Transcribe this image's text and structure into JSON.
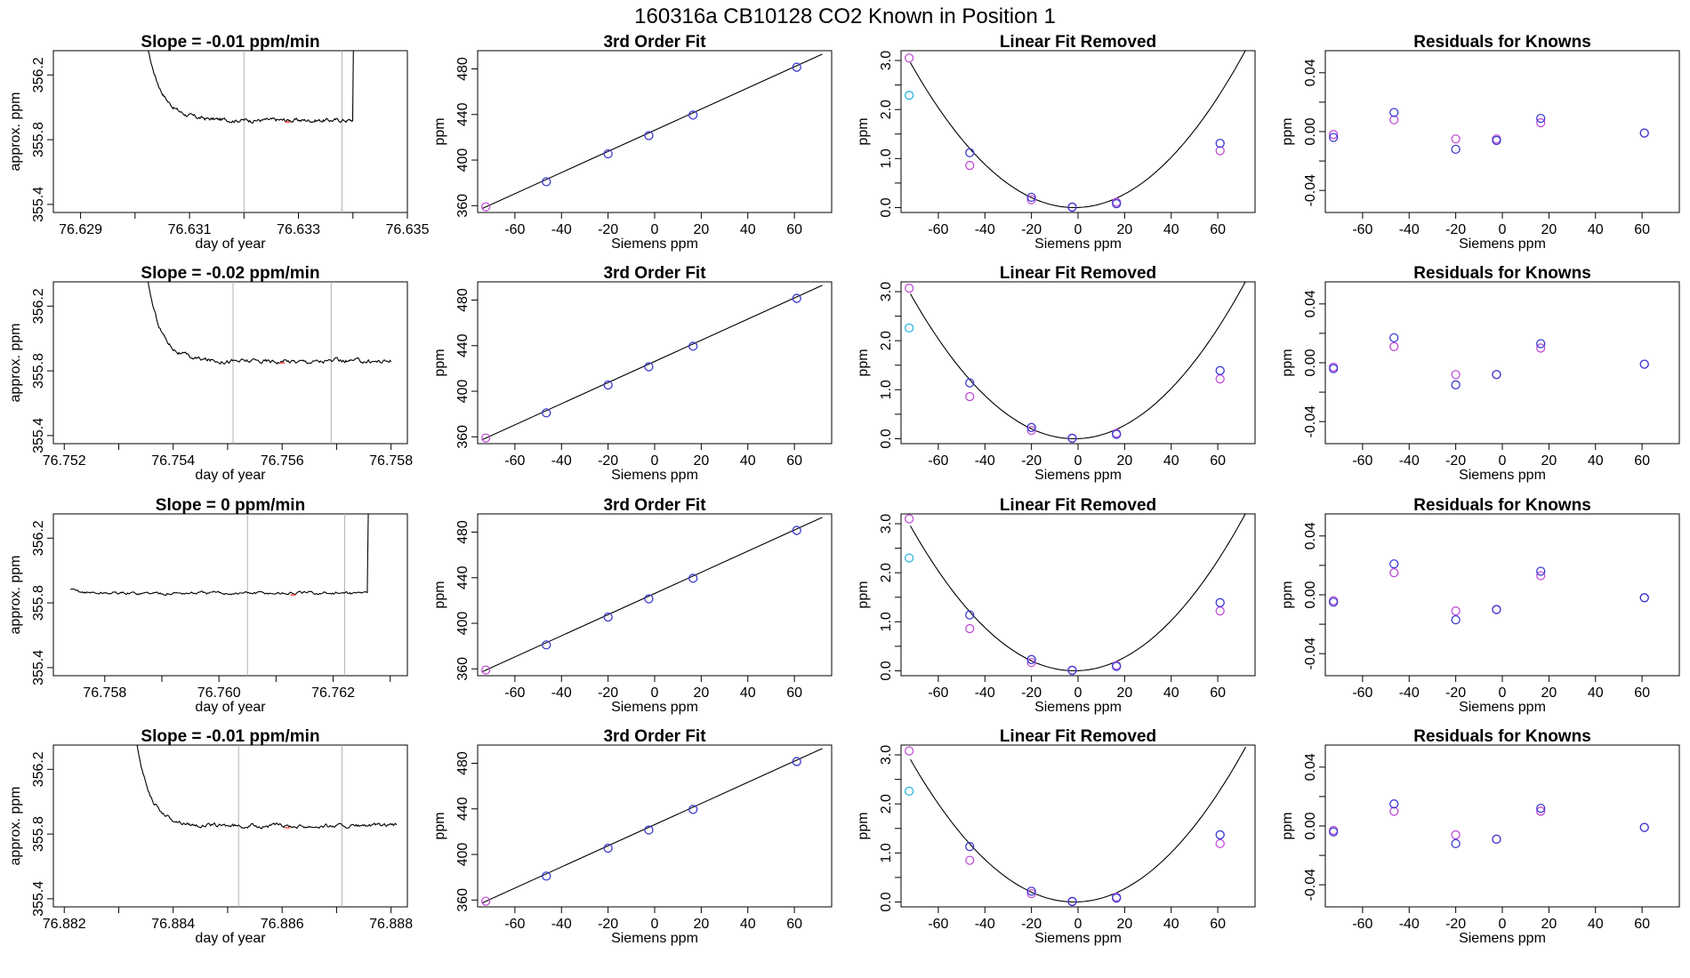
{
  "header": {
    "title": "160316a     CB10128    CO2 Known in Position  1"
  },
  "colors": {
    "series_a": "#3a3ad0",
    "series_b": "#c24fd8",
    "outlier": "#29b6e0",
    "marker": "#ff4d4d",
    "guide": "#b0b0b0"
  },
  "chart_data": [
    {
      "type": "line",
      "row": 1,
      "col": 1,
      "title": "Slope =  -0.01  ppm/min",
      "xlabel": "day of year",
      "ylabel": "approx. ppm",
      "xlim": [
        76.6285,
        76.635
      ],
      "ylim": [
        355.35,
        356.35
      ],
      "xticks": [
        76.629,
        76.631,
        76.633,
        76.635
      ],
      "xtick_labels": [
        "76.629",
        "76.631",
        "76.633",
        "76.635"
      ],
      "xticks_minor": [
        76.63,
        76.632,
        76.634
      ],
      "yticks": [
        355.4,
        355.8,
        356.2
      ],
      "ytick_labels": [
        "355.4",
        "355.8",
        "356.2"
      ],
      "vlines": [
        76.632,
        76.6338
      ],
      "marker_x": 76.6328,
      "trace": {
        "start": 76.6302,
        "end": 76.6341,
        "y0": 356.42,
        "plateau": 355.92,
        "tau": 0.00028,
        "noise": 0.01,
        "rise_at": 76.634,
        "rise_to": 356.42
      }
    },
    {
      "type": "scatter",
      "row": 1,
      "col": 2,
      "title": "3rd Order Fit",
      "xlabel": "Siemens ppm",
      "ylabel": "ppm",
      "xlim": [
        -76,
        76
      ],
      "ylim": [
        354,
        496
      ],
      "xticks": [
        -60,
        -40,
        -20,
        0,
        20,
        40,
        60
      ],
      "xtick_labels": [
        "-60",
        "-40",
        "-20",
        "0",
        "20",
        "40",
        "60"
      ],
      "yticks": [
        360,
        400,
        440,
        480
      ],
      "ytick_labels": [
        "360",
        "400",
        "440",
        "480"
      ],
      "line": {
        "x": [
          -74,
          72
        ],
        "y": [
          357.5,
          493
        ]
      },
      "points": {
        "x": [
          -72.5,
          -46.5,
          -20,
          -2.5,
          16.5,
          61
        ],
        "y": [
          359,
          381,
          405.5,
          421.5,
          439.5,
          481.5
        ]
      }
    },
    {
      "type": "scatter",
      "row": 1,
      "col": 3,
      "title": "Linear Fit Removed",
      "xlabel": "Siemens ppm",
      "ylabel": "ppm",
      "xlim": [
        -76,
        76
      ],
      "ylim": [
        -0.1,
        3.2
      ],
      "xticks": [
        -60,
        -40,
        -20,
        0,
        20,
        40,
        60
      ],
      "xtick_labels": [
        "-60",
        "-40",
        "-20",
        "0",
        "20",
        "40",
        "60"
      ],
      "yticks": [
        0,
        1,
        2,
        3
      ],
      "ytick_labels": [
        "0.0",
        "1.0",
        "2.0",
        "3.0"
      ],
      "yticks_minor": [
        0.5,
        1.5,
        2.5
      ],
      "curve": {
        "vertex": -1.5,
        "k": 0.000595,
        "from": -72,
        "to": 72
      },
      "points_a": {
        "x": [
          -46.5,
          -20,
          -2.5,
          16.5,
          61
        ],
        "y": [
          1.12,
          0.21,
          0.01,
          0.08,
          1.31
        ]
      },
      "points_b": {
        "x": [
          -72.5,
          -46.5,
          -20,
          -2.5,
          16.5,
          61
        ],
        "y": [
          3.05,
          0.86,
          0.16,
          0.01,
          0.11,
          1.16
        ]
      },
      "outlier": {
        "x": [
          -72.5
        ],
        "y": [
          2.29
        ]
      }
    },
    {
      "type": "scatter",
      "row": 1,
      "col": 4,
      "title": "Residuals for Knowns",
      "xlabel": "Siemens ppm",
      "ylabel": "ppm",
      "xlim": [
        -76,
        76
      ],
      "ylim": [
        -0.055,
        0.055
      ],
      "xticks": [
        -60,
        -40,
        -20,
        0,
        20,
        40,
        60
      ],
      "xtick_labels": [
        "-60",
        "-40",
        "-20",
        "0",
        "20",
        "40",
        "60"
      ],
      "yticks": [
        -0.04,
        0,
        0.04
      ],
      "ytick_labels": [
        "-0.04",
        "0.00",
        "0.04"
      ],
      "yticks_minor": [
        -0.02,
        0.02
      ],
      "points_a": {
        "x": [
          -72.5,
          -46.5,
          -20,
          -2.5,
          16.5,
          61
        ],
        "y": [
          -0.004,
          0.013,
          -0.012,
          -0.006,
          0.009,
          -0.001
        ]
      },
      "points_b": {
        "x": [
          -72.5,
          -46.5,
          -20,
          -2.5,
          16.5,
          61
        ],
        "y": [
          -0.002,
          0.008,
          -0.005,
          -0.005,
          0.006,
          -0.001
        ]
      }
    },
    {
      "type": "line",
      "row": 2,
      "col": 1,
      "title": "Slope =  -0.02  ppm/min",
      "xlabel": "day of year",
      "ylabel": "approx. ppm",
      "xlim": [
        76.7518,
        76.7583
      ],
      "ylim": [
        355.35,
        356.35
      ],
      "xticks": [
        76.752,
        76.754,
        76.756,
        76.758
      ],
      "xtick_labels": [
        "76.752",
        "76.754",
        "76.756",
        "76.758"
      ],
      "xticks_minor": [
        76.753,
        76.755,
        76.757
      ],
      "yticks": [
        355.4,
        355.8,
        356.2
      ],
      "ytick_labels": [
        "355.4",
        "355.8",
        "356.2"
      ],
      "vlines": [
        76.7551,
        76.7569
      ],
      "marker_x": 76.756,
      "trace": {
        "start": 76.7535,
        "end": 76.758,
        "y0": 356.42,
        "plateau": 355.86,
        "tau": 0.00026,
        "noise": 0.011
      }
    },
    {
      "type": "scatter",
      "row": 2,
      "col": 2,
      "title": "3rd Order Fit",
      "xlabel": "Siemens ppm",
      "ylabel": "ppm",
      "xlim": [
        -76,
        76
      ],
      "ylim": [
        354,
        496
      ],
      "xticks": [
        -60,
        -40,
        -20,
        0,
        20,
        40,
        60
      ],
      "xtick_labels": [
        "-60",
        "-40",
        "-20",
        "0",
        "20",
        "40",
        "60"
      ],
      "yticks": [
        360,
        400,
        440,
        480
      ],
      "ytick_labels": [
        "360",
        "400",
        "440",
        "480"
      ],
      "line": {
        "x": [
          -74,
          72
        ],
        "y": [
          357.5,
          493
        ]
      },
      "points": {
        "x": [
          -72.5,
          -46.5,
          -20,
          -2.5,
          16.5,
          61
        ],
        "y": [
          359,
          381,
          405.5,
          421.5,
          439.5,
          481.5
        ]
      }
    },
    {
      "type": "scatter",
      "row": 2,
      "col": 3,
      "title": "Linear Fit Removed",
      "xlabel": "Siemens ppm",
      "ylabel": "ppm",
      "xlim": [
        -76,
        76
      ],
      "ylim": [
        -0.1,
        3.2
      ],
      "xticks": [
        -60,
        -40,
        -20,
        0,
        20,
        40,
        60
      ],
      "xtick_labels": [
        "-60",
        "-40",
        "-20",
        "0",
        "20",
        "40",
        "60"
      ],
      "yticks": [
        0,
        1,
        2,
        3
      ],
      "ytick_labels": [
        "0.0",
        "1.0",
        "2.0",
        "3.0"
      ],
      "yticks_minor": [
        0.5,
        1.5,
        2.5
      ],
      "curve": {
        "vertex": -1.5,
        "k": 0.000595,
        "from": -72,
        "to": 72
      },
      "points_a": {
        "x": [
          -46.5,
          -20,
          -2.5,
          16.5,
          61
        ],
        "y": [
          1.14,
          0.23,
          0.01,
          0.09,
          1.39
        ]
      },
      "points_b": {
        "x": [
          -72.5,
          -46.5,
          -20,
          -2.5,
          16.5,
          61
        ],
        "y": [
          3.07,
          0.86,
          0.17,
          0.01,
          0.11,
          1.22
        ]
      },
      "outlier": {
        "x": [
          -72.5
        ],
        "y": [
          2.26
        ]
      }
    },
    {
      "type": "scatter",
      "row": 2,
      "col": 4,
      "title": "Residuals for Knowns",
      "xlabel": "Siemens ppm",
      "ylabel": "ppm",
      "xlim": [
        -76,
        76
      ],
      "ylim": [
        -0.055,
        0.055
      ],
      "xticks": [
        -60,
        -40,
        -20,
        0,
        20,
        40,
        60
      ],
      "xtick_labels": [
        "-60",
        "-40",
        "-20",
        "0",
        "20",
        "40",
        "60"
      ],
      "yticks": [
        -0.04,
        0,
        0.04
      ],
      "ytick_labels": [
        "-0.04",
        "0.00",
        "0.04"
      ],
      "yticks_minor": [
        -0.02,
        0.02
      ],
      "points_a": {
        "x": [
          -72.5,
          -46.5,
          -20,
          -2.5,
          16.5,
          61
        ],
        "y": [
          -0.004,
          0.017,
          -0.015,
          -0.008,
          0.013,
          -0.001
        ]
      },
      "points_b": {
        "x": [
          -72.5,
          -46.5,
          -20,
          -2.5,
          16.5,
          61
        ],
        "y": [
          -0.003,
          0.011,
          -0.008,
          -0.008,
          0.01,
          -0.001
        ]
      }
    },
    {
      "type": "line",
      "row": 3,
      "col": 1,
      "title": "Slope =  0  ppm/min",
      "xlabel": "day of year",
      "ylabel": "approx. ppm",
      "xlim": [
        76.7571,
        76.7633
      ],
      "ylim": [
        355.35,
        356.35
      ],
      "xticks": [
        76.758,
        76.76,
        76.762
      ],
      "xtick_labels": [
        "76.758",
        "76.760",
        "76.762"
      ],
      "xticks_minor": [
        76.759,
        76.761,
        76.763
      ],
      "yticks": [
        355.4,
        355.8,
        356.2
      ],
      "ytick_labels": [
        "355.4",
        "355.8",
        "356.2"
      ],
      "vlines": [
        76.7605,
        76.7622
      ],
      "marker_x": 76.7613,
      "trace": {
        "start": 76.7574,
        "end": 76.7627,
        "y0": 355.88,
        "plateau": 355.86,
        "tau": 0.0002,
        "noise": 0.008,
        "rise_at": 76.7626,
        "rise_to": 356.42
      }
    },
    {
      "type": "scatter",
      "row": 3,
      "col": 2,
      "title": "3rd Order Fit",
      "xlabel": "Siemens ppm",
      "ylabel": "ppm",
      "xlim": [
        -76,
        76
      ],
      "ylim": [
        354,
        496
      ],
      "xticks": [
        -60,
        -40,
        -20,
        0,
        20,
        40,
        60
      ],
      "xtick_labels": [
        "-60",
        "-40",
        "-20",
        "0",
        "20",
        "40",
        "60"
      ],
      "yticks": [
        360,
        400,
        440,
        480
      ],
      "ytick_labels": [
        "360",
        "400",
        "440",
        "480"
      ],
      "line": {
        "x": [
          -74,
          72
        ],
        "y": [
          357.5,
          493
        ]
      },
      "points": {
        "x": [
          -72.5,
          -46.5,
          -20,
          -2.5,
          16.5,
          61
        ],
        "y": [
          359,
          381,
          405.5,
          421.5,
          439.5,
          481.5
        ]
      }
    },
    {
      "type": "scatter",
      "row": 3,
      "col": 3,
      "title": "Linear Fit Removed",
      "xlabel": "Siemens ppm",
      "ylabel": "ppm",
      "xlim": [
        -76,
        76
      ],
      "ylim": [
        -0.1,
        3.2
      ],
      "xticks": [
        -60,
        -40,
        -20,
        0,
        20,
        40,
        60
      ],
      "xtick_labels": [
        "-60",
        "-40",
        "-20",
        "0",
        "20",
        "40",
        "60"
      ],
      "yticks": [
        0,
        1,
        2,
        3
      ],
      "ytick_labels": [
        "0.0",
        "1.0",
        "2.0",
        "3.0"
      ],
      "yticks_minor": [
        0.5,
        1.5,
        2.5
      ],
      "curve": {
        "vertex": -1.5,
        "k": 0.000595,
        "from": -72,
        "to": 72
      },
      "points_a": {
        "x": [
          -46.5,
          -20,
          -2.5,
          16.5,
          61
        ],
        "y": [
          1.14,
          0.23,
          0.01,
          0.09,
          1.39
        ]
      },
      "points_b": {
        "x": [
          -72.5,
          -46.5,
          -20,
          -2.5,
          16.5,
          61
        ],
        "y": [
          3.1,
          0.86,
          0.17,
          0.01,
          0.11,
          1.22
        ]
      },
      "outlier": {
        "x": [
          -72.5
        ],
        "y": [
          2.3
        ]
      }
    },
    {
      "type": "scatter",
      "row": 3,
      "col": 4,
      "title": "Residuals for Knowns",
      "xlabel": "Siemens ppm",
      "ylabel": "ppm",
      "xlim": [
        -76,
        76
      ],
      "ylim": [
        -0.055,
        0.055
      ],
      "xticks": [
        -60,
        -40,
        -20,
        0,
        20,
        40,
        60
      ],
      "xtick_labels": [
        "-60",
        "-40",
        "-20",
        "0",
        "20",
        "40",
        "60"
      ],
      "yticks": [
        -0.04,
        0,
        0.04
      ],
      "ytick_labels": [
        "-0.04",
        "0.00",
        "0.04"
      ],
      "yticks_minor": [
        -0.02,
        0.02
      ],
      "points_a": {
        "x": [
          -72.5,
          -46.5,
          -20,
          -2.5,
          16.5,
          61
        ],
        "y": [
          -0.005,
          0.021,
          -0.017,
          -0.01,
          0.016,
          -0.002
        ]
      },
      "points_b": {
        "x": [
          -72.5,
          -46.5,
          -20,
          -2.5,
          16.5,
          61
        ],
        "y": [
          -0.004,
          0.015,
          -0.011,
          -0.01,
          0.013,
          -0.002
        ]
      }
    },
    {
      "type": "line",
      "row": 4,
      "col": 1,
      "title": "Slope =  -0.01  ppm/min",
      "xlabel": "day of year",
      "ylabel": "approx. ppm",
      "xlim": [
        76.8818,
        76.8883
      ],
      "ylim": [
        355.35,
        356.35
      ],
      "xticks": [
        76.882,
        76.884,
        76.886,
        76.888
      ],
      "xtick_labels": [
        "76.882",
        "76.884",
        "76.886",
        "76.888"
      ],
      "xticks_minor": [
        76.883,
        76.885,
        76.887
      ],
      "yticks": [
        355.4,
        355.8,
        356.2
      ],
      "ytick_labels": [
        "355.4",
        "355.8",
        "356.2"
      ],
      "vlines": [
        76.8852,
        76.8871
      ],
      "marker_x": 76.8861,
      "trace": {
        "start": 76.8833,
        "end": 76.8881,
        "y0": 356.42,
        "plateau": 355.85,
        "tau": 0.00026,
        "noise": 0.01
      }
    },
    {
      "type": "scatter",
      "row": 4,
      "col": 2,
      "title": "3rd Order Fit",
      "xlabel": "Siemens ppm",
      "ylabel": "ppm",
      "xlim": [
        -76,
        76
      ],
      "ylim": [
        354,
        496
      ],
      "xticks": [
        -60,
        -40,
        -20,
        0,
        20,
        40,
        60
      ],
      "xtick_labels": [
        "-60",
        "-40",
        "-20",
        "0",
        "20",
        "40",
        "60"
      ],
      "yticks": [
        360,
        400,
        440,
        480
      ],
      "ytick_labels": [
        "360",
        "400",
        "440",
        "480"
      ],
      "line": {
        "x": [
          -74,
          72
        ],
        "y": [
          357.5,
          493
        ]
      },
      "points": {
        "x": [
          -72.5,
          -46.5,
          -20,
          -2.5,
          16.5,
          61
        ],
        "y": [
          359,
          381,
          405.5,
          421.5,
          439.5,
          481.5
        ]
      }
    },
    {
      "type": "scatter",
      "row": 4,
      "col": 3,
      "title": "Linear Fit Removed",
      "xlabel": "Siemens ppm",
      "ylabel": "ppm",
      "xlim": [
        -76,
        76
      ],
      "ylim": [
        -0.1,
        3.2
      ],
      "xticks": [
        -60,
        -40,
        -20,
        0,
        20,
        40,
        60
      ],
      "xtick_labels": [
        "-60",
        "-40",
        "-20",
        "0",
        "20",
        "40",
        "60"
      ],
      "yticks": [
        0,
        1,
        2,
        3
      ],
      "ytick_labels": [
        "0.0",
        "1.0",
        "2.0",
        "3.0"
      ],
      "yticks_minor": [
        0.5,
        1.5,
        2.5
      ],
      "curve": {
        "vertex": -1.5,
        "k": 0.000585,
        "from": -72,
        "to": 72
      },
      "points_a": {
        "x": [
          -46.5,
          -20,
          -2.5,
          16.5,
          61
        ],
        "y": [
          1.13,
          0.22,
          0.01,
          0.08,
          1.37
        ]
      },
      "points_b": {
        "x": [
          -72.5,
          -46.5,
          -20,
          -2.5,
          16.5,
          61
        ],
        "y": [
          3.08,
          0.85,
          0.17,
          0.01,
          0.1,
          1.19
        ]
      },
      "outlier": {
        "x": [
          -72.5
        ],
        "y": [
          2.26
        ]
      }
    },
    {
      "type": "scatter",
      "row": 4,
      "col": 4,
      "title": "Residuals for Knowns",
      "xlabel": "Siemens ppm",
      "ylabel": "ppm",
      "xlim": [
        -76,
        76
      ],
      "ylim": [
        -0.055,
        0.055
      ],
      "xticks": [
        -60,
        -40,
        -20,
        0,
        20,
        40,
        60
      ],
      "xtick_labels": [
        "-60",
        "-40",
        "-20",
        "0",
        "20",
        "40",
        "60"
      ],
      "yticks": [
        -0.04,
        0,
        0.04
      ],
      "ytick_labels": [
        "-0.04",
        "0.00",
        "0.04"
      ],
      "yticks_minor": [
        -0.02,
        0.02
      ],
      "points_a": {
        "x": [
          -72.5,
          -46.5,
          -20,
          -2.5,
          16.5,
          61
        ],
        "y": [
          -0.004,
          0.015,
          -0.012,
          -0.009,
          0.012,
          -0.001
        ]
      },
      "points_b": {
        "x": [
          -72.5,
          -46.5,
          -20,
          -2.5,
          16.5,
          61
        ],
        "y": [
          -0.003,
          0.01,
          -0.006,
          -0.009,
          0.01,
          -0.001
        ]
      }
    }
  ]
}
